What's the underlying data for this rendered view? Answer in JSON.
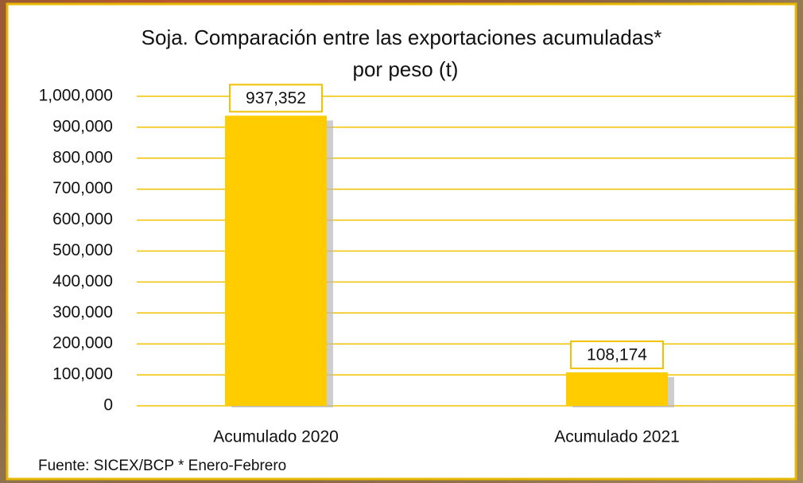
{
  "chart_data": {
    "type": "bar",
    "title": [
      "Soja. Comparación entre las exportaciones acumuladas*",
      "por peso (t)"
    ],
    "categories": [
      "Acumulado 2020",
      "Acumulado 2021"
    ],
    "values": [
      937352,
      108174
    ],
    "value_labels": [
      "937,352",
      "108,174"
    ],
    "color": "#ffcc00",
    "ylim": [
      0,
      1000000
    ],
    "yticks": [
      0,
      {
        "value": 100000,
        "label": "100,000"
      },
      {
        "value": 200000,
        "label": "200,000"
      },
      {
        "value": 300000,
        "label": "300,000"
      },
      {
        "value": 400000,
        "label": "400,000"
      },
      {
        "value": 500000,
        "label": "500,000"
      },
      {
        "value": 600000,
        "label": "600,000"
      },
      {
        "value": 700000,
        "label": "700,000"
      },
      {
        "value": 800000,
        "label": "800,000"
      },
      {
        "value": 900000,
        "label": "900,000"
      },
      {
        "value": 1000000,
        "label": "1,000,000"
      }
    ],
    "grid": true,
    "grid_color": "#f2c200",
    "note": "Fuente: SICEX/BCP  * Enero-Febrero"
  }
}
